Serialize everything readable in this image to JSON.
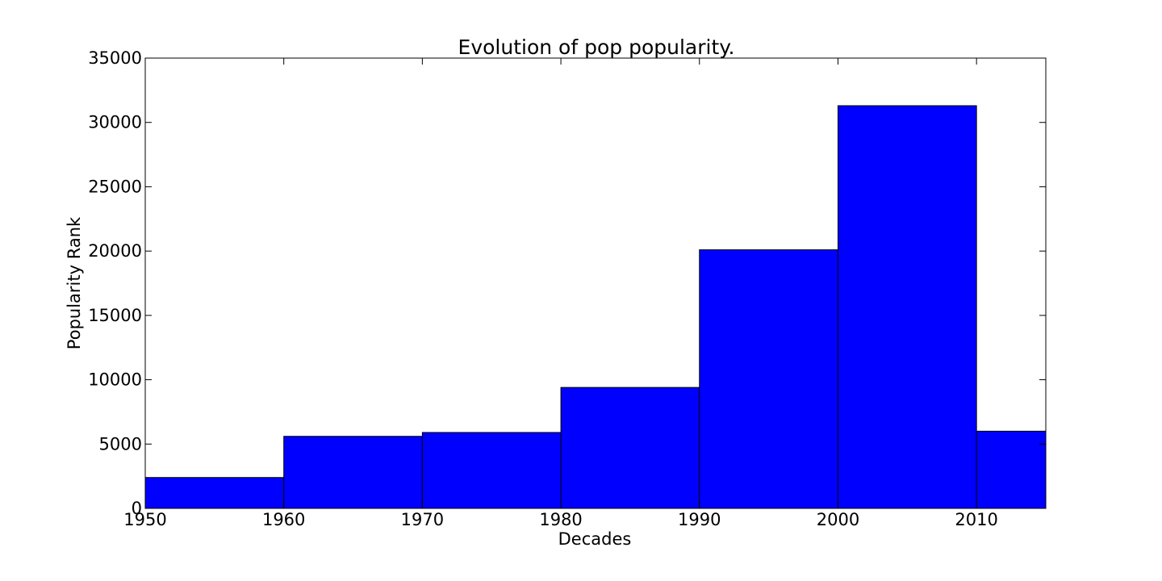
{
  "chart_data": {
    "type": "bar",
    "title": "Evolution of pop popularity.",
    "xlabel": "Decades",
    "ylabel": "Popularity Rank",
    "xlim": [
      1950,
      2015
    ],
    "ylim": [
      0,
      35000
    ],
    "bin_edges": [
      1950,
      1960,
      1970,
      1980,
      1990,
      2000,
      2010,
      2015
    ],
    "values": [
      2400,
      5600,
      5900,
      9400,
      20100,
      31300,
      6000
    ],
    "x_ticks": [
      1950,
      1960,
      1970,
      1980,
      1990,
      2000,
      2010
    ],
    "y_ticks": [
      0,
      5000,
      10000,
      15000,
      20000,
      25000,
      30000,
      35000
    ],
    "bar_color": "#0000ff",
    "edge_color": "#000000",
    "grid": false,
    "legend": "none"
  }
}
